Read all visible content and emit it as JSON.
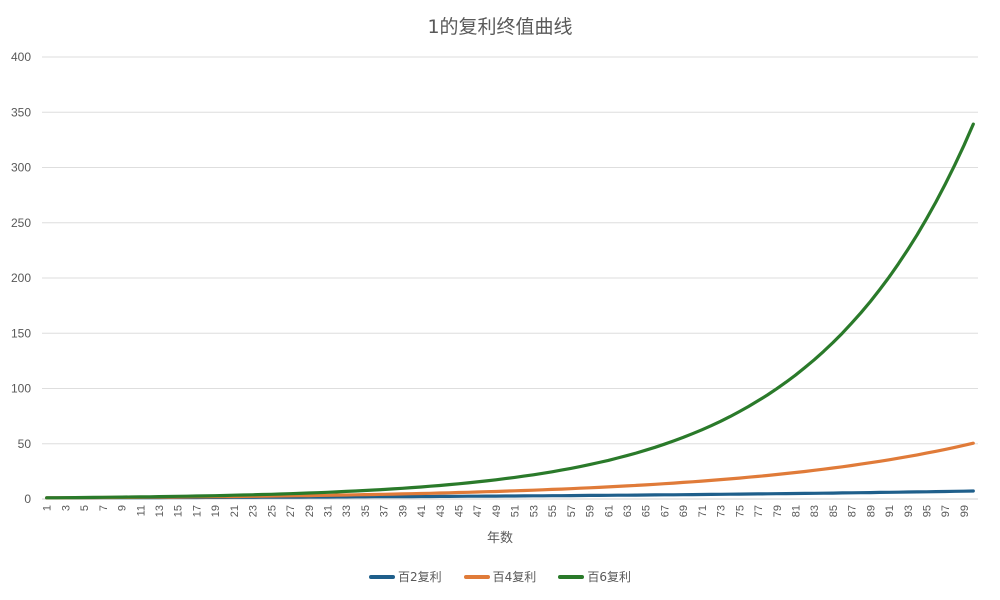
{
  "chart_data": {
    "type": "line",
    "title": "1的复利终值曲线",
    "xlabel": "年数",
    "ylabel": "",
    "ylim": [
      0,
      400
    ],
    "yticks": [
      0,
      50,
      100,
      150,
      200,
      250,
      300,
      350,
      400
    ],
    "grid": true,
    "legend_position": "bottom",
    "x": [
      1,
      2,
      3,
      4,
      5,
      6,
      7,
      8,
      9,
      10,
      11,
      12,
      13,
      14,
      15,
      16,
      17,
      18,
      19,
      20,
      21,
      22,
      23,
      24,
      25,
      26,
      27,
      28,
      29,
      30,
      31,
      32,
      33,
      34,
      35,
      36,
      37,
      38,
      39,
      40,
      41,
      42,
      43,
      44,
      45,
      46,
      47,
      48,
      49,
      50,
      51,
      52,
      53,
      54,
      55,
      56,
      57,
      58,
      59,
      60,
      61,
      62,
      63,
      64,
      65,
      66,
      67,
      68,
      69,
      70,
      71,
      72,
      73,
      74,
      75,
      76,
      77,
      78,
      79,
      80,
      81,
      82,
      83,
      84,
      85,
      86,
      87,
      88,
      89,
      90,
      91,
      92,
      93,
      94,
      95,
      96,
      97,
      98,
      99,
      100
    ],
    "xtick_labels_shown": [
      "1",
      "3",
      "5",
      "7",
      "9",
      "11",
      "13",
      "15",
      "17",
      "19",
      "21",
      "23",
      "25",
      "27",
      "29",
      "31",
      "33",
      "35",
      "37",
      "39",
      "41",
      "43",
      "45",
      "47",
      "49",
      "51",
      "53",
      "55",
      "57",
      "59",
      "61",
      "63",
      "65",
      "67",
      "69",
      "71",
      "73",
      "75",
      "77",
      "79",
      "81",
      "83",
      "85",
      "87",
      "89",
      "91",
      "93",
      "95",
      "97",
      "99"
    ],
    "series": [
      {
        "name": "百2复利",
        "color": "#1f5f8b",
        "values": [
          1.02,
          1.04,
          1.06,
          1.08,
          1.1,
          1.13,
          1.15,
          1.17,
          1.2,
          1.22,
          1.24,
          1.27,
          1.29,
          1.32,
          1.35,
          1.37,
          1.4,
          1.43,
          1.46,
          1.49,
          1.52,
          1.55,
          1.58,
          1.61,
          1.64,
          1.67,
          1.71,
          1.74,
          1.78,
          1.81,
          1.85,
          1.88,
          1.92,
          1.96,
          2.0,
          2.04,
          2.08,
          2.12,
          2.16,
          2.21,
          2.25,
          2.3,
          2.34,
          2.39,
          2.44,
          2.49,
          2.54,
          2.59,
          2.64,
          2.69,
          2.75,
          2.8,
          2.86,
          2.91,
          2.97,
          3.03,
          3.09,
          3.15,
          3.22,
          3.28,
          3.35,
          3.41,
          3.48,
          3.55,
          3.62,
          3.69,
          3.77,
          3.84,
          3.92,
          4.0,
          4.08,
          4.16,
          4.24,
          4.33,
          4.42,
          4.5,
          4.59,
          4.69,
          4.78,
          4.88,
          4.97,
          5.07,
          5.17,
          5.28,
          5.38,
          5.49,
          5.6,
          5.71,
          5.83,
          5.94,
          6.06,
          6.18,
          6.31,
          6.43,
          6.56,
          6.69,
          6.83,
          6.96,
          7.1,
          7.24
        ]
      },
      {
        "name": "百4复利",
        "color": "#e07b39",
        "values": [
          1.04,
          1.08,
          1.12,
          1.17,
          1.22,
          1.27,
          1.32,
          1.37,
          1.42,
          1.48,
          1.54,
          1.6,
          1.67,
          1.73,
          1.8,
          1.87,
          1.95,
          2.03,
          2.11,
          2.19,
          2.28,
          2.37,
          2.46,
          2.56,
          2.67,
          2.77,
          2.88,
          3.0,
          3.12,
          3.24,
          3.37,
          3.51,
          3.65,
          3.79,
          3.95,
          4.1,
          4.27,
          4.44,
          4.62,
          4.8,
          4.99,
          5.19,
          5.4,
          5.62,
          5.84,
          6.07,
          6.32,
          6.57,
          6.83,
          7.11,
          7.39,
          7.69,
          7.99,
          8.31,
          8.65,
          8.99,
          9.35,
          9.73,
          10.12,
          10.52,
          10.94,
          11.38,
          11.84,
          12.31,
          12.8,
          13.31,
          13.85,
          14.4,
          14.98,
          15.57,
          16.2,
          16.84,
          17.52,
          18.22,
          18.95,
          19.71,
          20.49,
          21.31,
          22.16,
          23.05,
          23.97,
          24.93,
          25.93,
          26.97,
          28.05,
          29.17,
          30.33,
          31.55,
          32.81,
          34.12,
          35.49,
          36.91,
          38.38,
          39.92,
          41.52,
          43.18,
          44.9,
          46.7,
          48.57,
          50.5
        ]
      },
      {
        "name": "百6复利",
        "color": "#2a7a2a",
        "values": [
          1.06,
          1.12,
          1.19,
          1.26,
          1.34,
          1.42,
          1.5,
          1.59,
          1.69,
          1.79,
          1.9,
          2.01,
          2.13,
          2.26,
          2.4,
          2.54,
          2.69,
          2.85,
          3.03,
          3.21,
          3.4,
          3.6,
          3.82,
          4.05,
          4.29,
          4.55,
          4.82,
          5.11,
          5.42,
          5.74,
          6.09,
          6.45,
          6.84,
          7.25,
          7.69,
          8.15,
          8.64,
          9.15,
          9.7,
          10.29,
          10.9,
          11.56,
          12.25,
          12.99,
          13.76,
          14.59,
          15.47,
          16.39,
          17.38,
          18.42,
          19.53,
          20.7,
          21.94,
          23.26,
          24.65,
          26.13,
          27.7,
          29.36,
          31.12,
          32.99,
          34.97,
          37.07,
          39.29,
          41.65,
          44.15,
          46.8,
          49.6,
          52.58,
          55.73,
          59.08,
          62.62,
          66.38,
          70.36,
          74.58,
          79.06,
          83.8,
          88.83,
          94.16,
          99.81,
          105.8,
          112.15,
          118.87,
          126.01,
          133.57,
          141.58,
          150.08,
          159.08,
          168.63,
          178.74,
          189.46,
          200.83,
          212.88,
          225.66,
          239.2,
          253.55,
          268.76,
          284.89,
          301.98,
          320.1,
          339.3
        ]
      }
    ]
  }
}
